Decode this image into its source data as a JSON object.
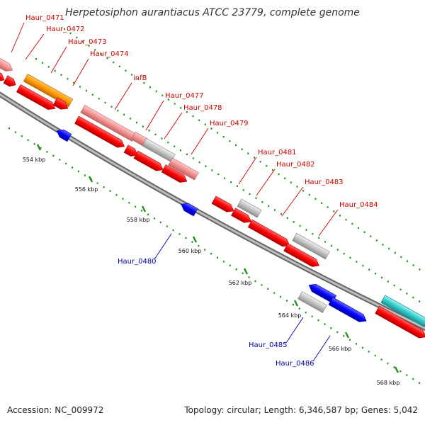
{
  "title": "Herpetosiphon aurantiacus ATCC 23779, complete genome",
  "footer": {
    "accession": "Accession: NC_009972",
    "summary": "Topology: circular; Length: 6,346,587 bp; Genes: 5,042"
  },
  "colors": {
    "red": "#ff0000",
    "pink": "#f29090",
    "gray": "#c2c2c2",
    "orange": "#ff9900",
    "blue": "#0000ff",
    "cyan": "#33cccc",
    "label_forward": "#cc0000",
    "label_reverse": "#0000aa",
    "tick": "#1f8f1f"
  },
  "kbp_markers": [
    {
      "label": "554 kbp"
    },
    {
      "label": "556 kbp"
    },
    {
      "label": "558 kbp"
    },
    {
      "label": "560 kbp"
    },
    {
      "label": "562 kbp"
    },
    {
      "label": "564 kbp"
    },
    {
      "label": "566 kbp"
    },
    {
      "label": "568 kbp"
    }
  ],
  "gene_labels": [
    {
      "name": "Haur_0471",
      "strand": "forward"
    },
    {
      "name": "Haur_0472",
      "strand": "forward"
    },
    {
      "name": "Haur_0473",
      "strand": "forward"
    },
    {
      "name": "Haur_0474",
      "strand": "forward"
    },
    {
      "name": "infB",
      "strand": "forward"
    },
    {
      "name": "Haur_0477",
      "strand": "forward"
    },
    {
      "name": "Haur_0478",
      "strand": "forward"
    },
    {
      "name": "Haur_0479",
      "strand": "forward"
    },
    {
      "name": "Haur_0480",
      "strand": "reverse"
    },
    {
      "name": "Haur_0481",
      "strand": "forward"
    },
    {
      "name": "Haur_0482",
      "strand": "forward"
    },
    {
      "name": "Haur_0483",
      "strand": "forward"
    },
    {
      "name": "Haur_0484",
      "strand": "forward"
    },
    {
      "name": "Haur_0485",
      "strand": "reverse"
    },
    {
      "name": "Haur_0486",
      "strand": "reverse"
    }
  ]
}
